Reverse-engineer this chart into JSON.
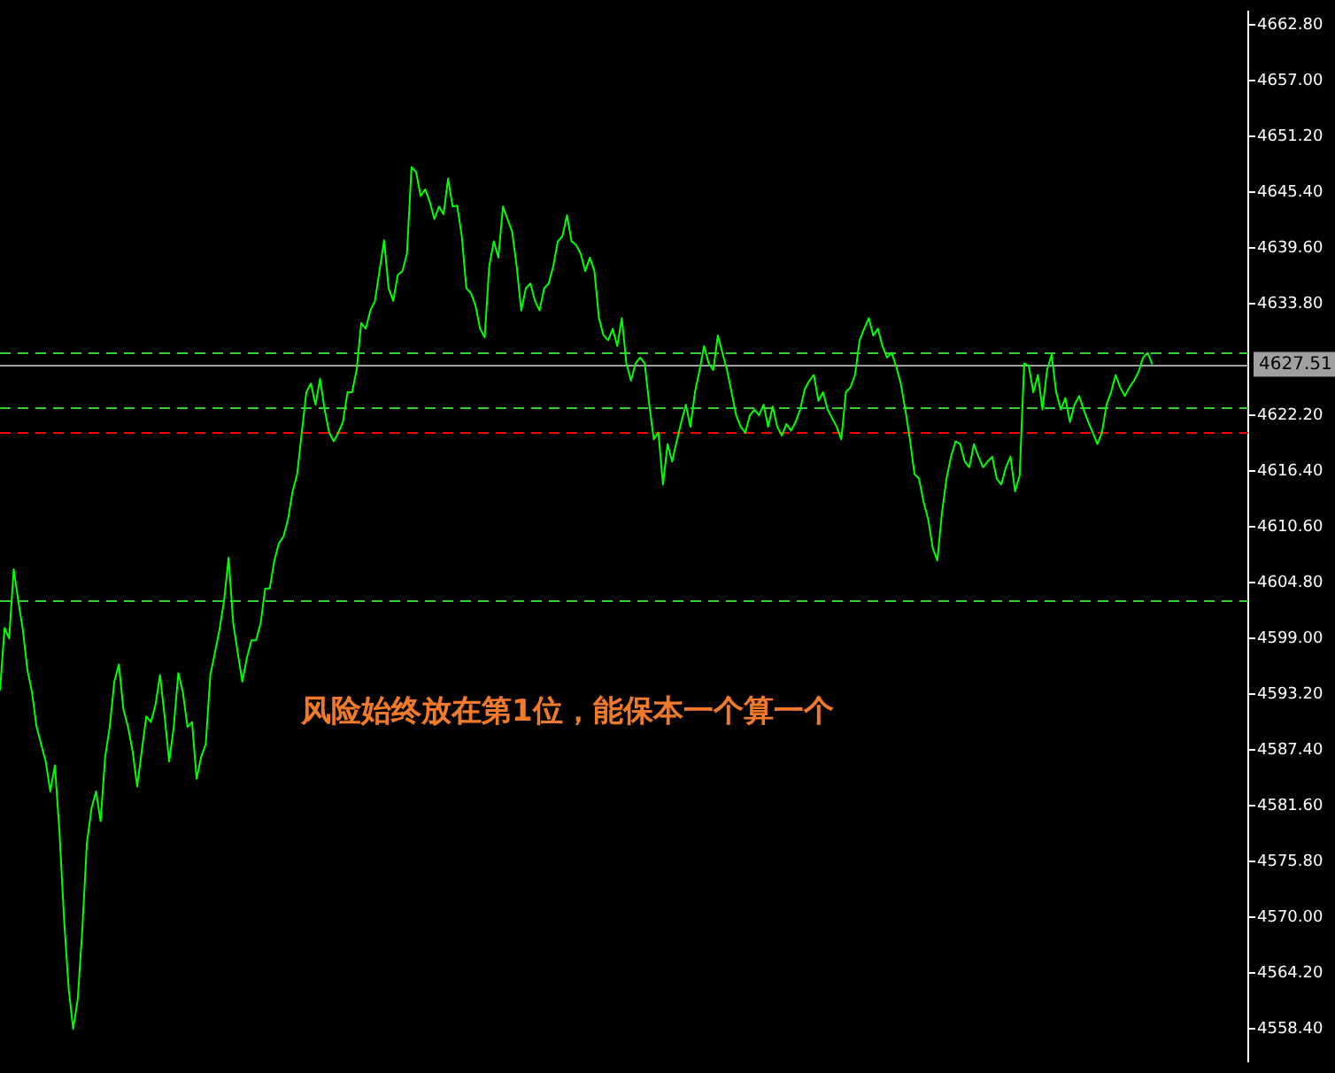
{
  "chart_data": {
    "type": "line",
    "categories": [
      null,
      null,
      null,
      null,
      null,
      null,
      null,
      null,
      null,
      null,
      null,
      null,
      null,
      null,
      null,
      null,
      null,
      null,
      null,
      null,
      null,
      null,
      null,
      null,
      null,
      null,
      null,
      null,
      null,
      null,
      null,
      null,
      null,
      null,
      null,
      null,
      null,
      null,
      null,
      null,
      null,
      null,
      null,
      null,
      null,
      null,
      null,
      null,
      null,
      null,
      null,
      null,
      null,
      null,
      null,
      null,
      null,
      null,
      null,
      null,
      null,
      null,
      null,
      null,
      null,
      null,
      null,
      null,
      null,
      null,
      null,
      null,
      null,
      null,
      null,
      null,
      null,
      null,
      null,
      null,
      null,
      null,
      null,
      null,
      null,
      null,
      null,
      null,
      null,
      null,
      null,
      null,
      null,
      null,
      null,
      null,
      null,
      null,
      null,
      null,
      null,
      null,
      null,
      null,
      null,
      null,
      null,
      null,
      null,
      null,
      null,
      null,
      null,
      null,
      null,
      null,
      null,
      null,
      null,
      null,
      null,
      null,
      null,
      null,
      null,
      null,
      null,
      null,
      null,
      null,
      null,
      null,
      null,
      null,
      null,
      null,
      null,
      null,
      null,
      null,
      null,
      null,
      null,
      null,
      null,
      null,
      null,
      null,
      null,
      null,
      null,
      null,
      null,
      null,
      null,
      null,
      null,
      null,
      null,
      null,
      null,
      null,
      null,
      null,
      null,
      null,
      null,
      null,
      null,
      null,
      null,
      null,
      null,
      null,
      null,
      null,
      null,
      null,
      null,
      null,
      null,
      null,
      null,
      null,
      null,
      null,
      null,
      null,
      null,
      null,
      null,
      null,
      null,
      null,
      null,
      null,
      null,
      null,
      null,
      null,
      null,
      null,
      null,
      null,
      null,
      null,
      null,
      null,
      null,
      null,
      null,
      null,
      null,
      null,
      null,
      null,
      null,
      null,
      null,
      null,
      null,
      null,
      null,
      null,
      null,
      null,
      null,
      null,
      null,
      null,
      null,
      null,
      null,
      null,
      null,
      null,
      null,
      null,
      null,
      null,
      null,
      null,
      null,
      null,
      null,
      null,
      null,
      null,
      null,
      null,
      null,
      null,
      null,
      null,
      null,
      null,
      null,
      null,
      null,
      null,
      null,
      null,
      null,
      null,
      null,
      null,
      null,
      null,
      null,
      null,
      null,
      null,
      null,
      null
    ],
    "series": [
      {
        "color": "#00ff00",
        "values": [
          4593.6,
          4600.1,
          4599.0,
          4606.2,
          4602.9,
          4599.9,
          4595.7,
          4593.4,
          4589.8,
          4588.0,
          4586.2,
          4583.1,
          4585.8,
          4579.0,
          4569.9,
          4562.7,
          4558.4,
          4561.5,
          4568.7,
          4577.7,
          4581.3,
          4583.1,
          4580.0,
          4586.7,
          4589.8,
          4594.5,
          4596.3,
          4591.6,
          4589.8,
          4587.3,
          4583.6,
          4587.3,
          4590.9,
          4590.3,
          4592.1,
          4595.2,
          4590.9,
          4586.2,
          4589.8,
          4595.4,
          4593.4,
          4589.8,
          4590.3,
          4584.4,
          4586.7,
          4588.0,
          4595.2,
          4597.5,
          4599.9,
          4602.9,
          4607.4,
          4600.6,
          4597.5,
          4594.5,
          4597.0,
          4598.8,
          4598.8,
          4600.6,
          4604.2,
          4604.2,
          4607.1,
          4608.9,
          4609.6,
          4611.4,
          4614.3,
          4616.1,
          4620.4,
          4624.6,
          4625.5,
          4623.3,
          4626.0,
          4622.8,
          4620.4,
          4619.5,
          4620.4,
          4621.5,
          4624.6,
          4624.6,
          4626.9,
          4631.8,
          4631.2,
          4633.1,
          4634.1,
          4637.2,
          4640.4,
          4635.4,
          4634.1,
          4636.8,
          4637.2,
          4639.0,
          4648.0,
          4647.5,
          4645.0,
          4645.7,
          4644.4,
          4642.6,
          4643.9,
          4643.1,
          4646.8,
          4643.9,
          4644.0,
          4640.8,
          4635.4,
          4634.9,
          4633.6,
          4631.2,
          4630.3,
          4637.7,
          4640.3,
          4638.6,
          4643.9,
          4642.6,
          4641.3,
          4637.7,
          4633.1,
          4635.4,
          4635.9,
          4634.1,
          4633.1,
          4635.4,
          4635.9,
          4637.7,
          4640.3,
          4640.8,
          4643.0,
          4640.3,
          4639.9,
          4639.0,
          4637.2,
          4638.6,
          4637.2,
          4632.3,
          4630.5,
          4630.0,
          4631.2,
          4629.4,
          4632.3,
          4627.6,
          4625.8,
          4627.6,
          4628.2,
          4627.6,
          4623.3,
          4619.7,
          4620.4,
          4615.0,
          4619.2,
          4617.4,
          4619.5,
          4621.5,
          4623.3,
          4621.0,
          4624.6,
          4626.9,
          4629.4,
          4627.6,
          4626.9,
          4630.5,
          4628.7,
          4626.9,
          4624.6,
          4622.2,
          4621.0,
          4620.4,
          4622.2,
          4622.8,
          4622.2,
          4623.3,
          4621.0,
          4623.1,
          4621.0,
          4620.1,
          4621.3,
          4620.6,
          4621.5,
          4622.8,
          4624.9,
          4625.8,
          4626.4,
          4623.7,
          4624.6,
          4622.8,
          4621.9,
          4621.0,
          4619.7,
          4624.6,
          4625.1,
          4626.4,
          4630.0,
          4631.2,
          4632.3,
          4630.5,
          4631.2,
          4629.4,
          4628.2,
          4628.7,
          4627.3,
          4625.5,
          4622.8,
          4619.7,
          4616.1,
          4615.6,
          4613.2,
          4611.4,
          4608.4,
          4607.1,
          4612.0,
          4615.6,
          4617.9,
          4619.5,
          4619.2,
          4617.4,
          4616.8,
          4619.2,
          4617.9,
          4616.8,
          4617.4,
          4617.9,
          4615.6,
          4615.0,
          4616.8,
          4617.9,
          4614.3,
          4615.9,
          4627.6,
          4627.3,
          4624.6,
          4626.4,
          4622.8,
          4626.9,
          4628.5,
          4624.6,
          4622.8,
          4624.0,
          4621.5,
          4623.3,
          4624.2,
          4622.8,
          4621.5,
          4620.4,
          4619.2,
          4620.4,
          4623.3,
          4624.6,
          4626.4,
          4625.1,
          4624.2,
          4625.1,
          4625.8,
          4626.7,
          4628.2,
          4628.7,
          4627.5,
          null,
          null,
          null,
          null,
          null,
          null,
          null,
          null,
          null,
          null,
          null,
          null,
          null,
          null,
          null,
          null,
          null,
          null,
          null,
          null,
          null
        ]
      }
    ],
    "ylim": [
      4555.0,
      4664.2
    ],
    "yticks": [
      {
        "value": 4662.8,
        "label": "4662.80"
      },
      {
        "value": 4657.0,
        "label": "4657.00"
      },
      {
        "value": 4651.2,
        "label": "4651.20"
      },
      {
        "value": 4645.4,
        "label": "4645.40"
      },
      {
        "value": 4639.6,
        "label": "4639.60"
      },
      {
        "value": 4633.8,
        "label": "4633.80"
      },
      {
        "value": 4622.2,
        "label": "4622.20"
      },
      {
        "value": 4616.4,
        "label": "4616.40"
      },
      {
        "value": 4610.6,
        "label": "4610.60"
      },
      {
        "value": 4604.8,
        "label": "4604.80"
      },
      {
        "value": 4599.0,
        "label": "4599.00"
      },
      {
        "value": 4593.2,
        "label": "4593.20"
      },
      {
        "value": 4587.4,
        "label": "4587.40"
      },
      {
        "value": 4581.6,
        "label": "4581.60"
      },
      {
        "value": 4575.8,
        "label": "4575.80"
      },
      {
        "value": 4570.0,
        "label": "4570.00"
      },
      {
        "value": 4564.2,
        "label": "4564.20"
      },
      {
        "value": 4558.4,
        "label": "4558.40"
      }
    ],
    "tick_labels": "y",
    "ref_lines": [
      {
        "axis": "y",
        "value": 4628.7,
        "color": "#32cd32",
        "line_style": "dashed"
      },
      {
        "axis": "y",
        "value": 4627.51,
        "label": "4627.51",
        "color": "#a0a0a0",
        "line_style": "solid"
      },
      {
        "axis": "y",
        "value": 4623.0,
        "color": "#32cd32",
        "line_style": "dashed"
      },
      {
        "axis": "y",
        "value": 4620.4,
        "color": "#ff0000",
        "line_style": "dashed"
      },
      {
        "axis": "y",
        "value": 4602.9,
        "color": "#32cd32",
        "line_style": "dashed"
      }
    ],
    "annotations": [
      "风险始终放在第1位，能保本一个算一个"
    ],
    "grid": false,
    "legend": false,
    "marker": "none",
    "line_style": "solid"
  }
}
